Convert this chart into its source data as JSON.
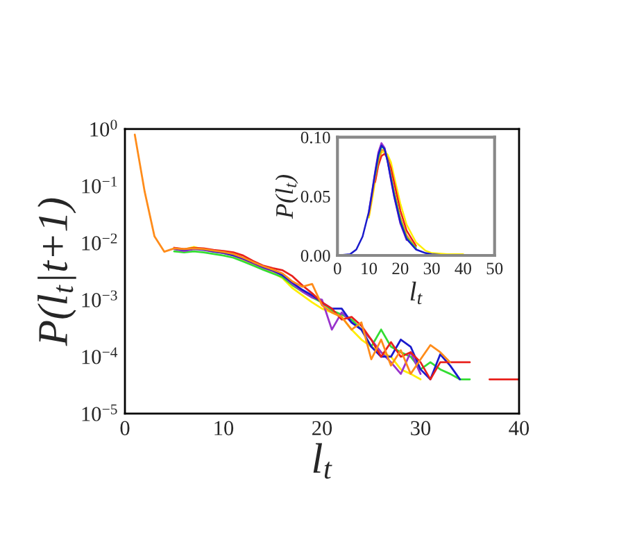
{
  "chart_data": [
    {
      "type": "line",
      "xlabel": "l$_{t}$",
      "ylabel": "P(l$_{t}$|t+1)",
      "log": "y",
      "grid": false,
      "legend": false,
      "xlim": [
        0,
        40
      ],
      "xticks": [
        0,
        10,
        20,
        30,
        40
      ],
      "ylim": [
        1e-05,
        1
      ],
      "yticks": [
        {
          "value": 1e-05,
          "label": "10$^{−5}$"
        },
        {
          "value": 0.0001,
          "label": "10$^{−4}$"
        },
        {
          "value": 0.001,
          "label": "10$^{−3}$"
        },
        {
          "value": 0.01,
          "label": "10$^{−2}$"
        },
        {
          "value": 0.1,
          "label": "10$^{−1}$"
        },
        {
          "value": 1,
          "label": "10$^{0}$"
        }
      ],
      "x": [
        1,
        2,
        3,
        4,
        5,
        6,
        7,
        8,
        9,
        10,
        11,
        12,
        13,
        14,
        15,
        16,
        17,
        18,
        19,
        20,
        21,
        22,
        23,
        24,
        25,
        26,
        27,
        28,
        29,
        30,
        31,
        32,
        33,
        34,
        35,
        36,
        37,
        38,
        39,
        40
      ],
      "series": [
        {
          "color": "#ffee00",
          "values": [
            null,
            null,
            null,
            null,
            0.008,
            0.0077,
            0.0085,
            0.0077,
            0.0072,
            0.0066,
            0.006,
            0.005,
            0.0042,
            0.0035,
            0.003,
            0.0024,
            0.0016,
            0.0012,
            0.0009,
            0.0007,
            0.0006,
            0.0005,
            0.0003,
            0.0002,
            0.00015,
            0.00012,
            0.0001,
            6e-05,
            5e-05,
            4e-05,
            null,
            null,
            null,
            null,
            null,
            null,
            null,
            null,
            null,
            null
          ]
        },
        {
          "color": "#33dd33",
          "values": [
            null,
            null,
            null,
            null,
            0.0071,
            0.0068,
            0.0071,
            0.0068,
            0.0064,
            0.006,
            0.0055,
            0.0047,
            0.004,
            0.0034,
            0.0029,
            0.0025,
            0.0018,
            0.0014,
            0.0011,
            0.0009,
            0.00065,
            0.00055,
            0.00045,
            0.0003,
            0.00015,
            0.0003,
            0.00015,
            0.00012,
            0.0001,
            6e-05,
            8e-05,
            6e-05,
            5e-05,
            4e-05,
            4e-05,
            null,
            null,
            null,
            null,
            null
          ]
        },
        {
          "color": "#9933cc",
          "values": [
            null,
            null,
            null,
            null,
            0.0078,
            0.0072,
            0.0078,
            0.0075,
            0.007,
            0.0066,
            0.006,
            0.0052,
            0.0044,
            0.0037,
            0.0032,
            0.0027,
            0.0019,
            0.0014,
            0.0011,
            0.001,
            0.0003,
            0.0006,
            0.0004,
            0.0003,
            0.0002,
            0.00012,
            8e-05,
            5e-05,
            0.00012,
            5e-05,
            null,
            null,
            null,
            null,
            null,
            null,
            null,
            null,
            null,
            null
          ]
        },
        {
          "color": "#1a1acc",
          "values": [
            null,
            null,
            null,
            null,
            0.008,
            0.0076,
            0.008,
            0.0076,
            0.0071,
            0.0067,
            0.0061,
            0.0053,
            0.0045,
            0.0038,
            0.0033,
            0.0027,
            0.002,
            0.0015,
            0.0012,
            0.0009,
            0.0007,
            0.0007,
            0.0004,
            0.0003,
            0.00015,
            0.0001,
            0.0001,
            0.0002,
            0.00015,
            6e-05,
            4e-05,
            0.00011,
            7e-05,
            4e-05,
            null,
            null,
            null,
            null,
            null,
            null
          ]
        },
        {
          "color": "#e8201c",
          "values": [
            null,
            null,
            null,
            null,
            0.0082,
            0.0078,
            0.0082,
            0.008,
            0.0075,
            0.0072,
            0.0068,
            0.006,
            0.0048,
            0.004,
            0.0036,
            0.0033,
            0.0026,
            0.0018,
            0.0013,
            0.0009,
            0.0007,
            0.00045,
            0.0005,
            0.00035,
            0.0002,
            0.0001,
            0.00018,
            0.0001,
            0.00012,
            8e-05,
            4e-05,
            8e-05,
            8e-05,
            8e-05,
            8e-05,
            null,
            4e-05,
            4e-05,
            4e-05,
            4e-05
          ]
        },
        {
          "color": "#ff8c1a",
          "values": [
            0.8,
            0.08,
            0.013,
            0.007,
            0.008,
            0.0078,
            0.008,
            0.0078,
            0.0073,
            0.0069,
            0.0064,
            0.0055,
            0.0046,
            0.0039,
            0.0034,
            0.0029,
            0.0021,
            0.0017,
            0.0019,
            0.0008,
            0.0006,
            0.0005,
            0.0003,
            0.0004,
            9e-05,
            0.0002,
            7e-05,
            0.00013,
            5e-05,
            9e-05,
            0.00016,
            0.00012,
            8e-05,
            null,
            null,
            null,
            null,
            null,
            null,
            null
          ]
        }
      ]
    },
    {
      "type": "line",
      "xlabel": "l$_{t}$",
      "ylabel": "P(l$_{t}$)",
      "grid": false,
      "legend": false,
      "xlim": [
        0,
        50
      ],
      "xticks": [
        0,
        10,
        20,
        30,
        40,
        50
      ],
      "ylim": [
        0,
        0.1
      ],
      "yticks": [
        {
          "value": 0,
          "label": "0.00"
        },
        {
          "value": 0.05,
          "label": "0.05"
        },
        {
          "value": 0.1,
          "label": "0.10"
        }
      ],
      "series": [
        {
          "color": "#ffee00",
          "x": [
            10,
            11,
            12,
            13,
            14,
            15,
            16,
            17,
            18,
            20,
            22,
            25,
            28,
            30,
            35,
            40
          ],
          "values": [
            0.032,
            0.047,
            0.063,
            0.078,
            0.087,
            0.088,
            0.085,
            0.079,
            0.067,
            0.044,
            0.026,
            0.011,
            0.004,
            0.002,
            0.001,
            0.001
          ]
        },
        {
          "color": "#e8201c",
          "x": [
            12,
            13,
            14,
            15,
            16,
            17,
            18,
            20,
            22,
            25
          ],
          "values": [
            0.062,
            0.076,
            0.084,
            0.086,
            0.082,
            0.074,
            0.062,
            0.038,
            0.021,
            0.008
          ]
        },
        {
          "color": "#ff8c1a",
          "x": [
            10,
            11,
            12,
            13,
            14,
            15,
            16,
            17,
            18,
            20,
            22,
            25
          ],
          "values": [
            0.034,
            0.05,
            0.066,
            0.08,
            0.089,
            0.089,
            0.081,
            0.068,
            0.055,
            0.032,
            0.017,
            0.006
          ]
        },
        {
          "color": "#33dd33",
          "x": [
            12,
            13,
            14,
            15,
            16,
            17,
            18,
            20,
            22,
            25
          ],
          "values": [
            0.068,
            0.083,
            0.092,
            0.09,
            0.08,
            0.066,
            0.053,
            0.03,
            0.015,
            0.006
          ]
        },
        {
          "color": "#9933cc",
          "x": [
            10,
            11,
            12,
            13,
            14,
            15,
            16,
            17,
            18,
            20,
            22
          ],
          "values": [
            0.037,
            0.054,
            0.071,
            0.087,
            0.095,
            0.091,
            0.079,
            0.064,
            0.05,
            0.027,
            0.013
          ]
        },
        {
          "color": "#1a1acc",
          "x": [
            0,
            4,
            6,
            8,
            10,
            11,
            12,
            13,
            14,
            15,
            16,
            17,
            18,
            20,
            22,
            25,
            28,
            30,
            35
          ],
          "values": [
            0,
            0.001,
            0.005,
            0.016,
            0.037,
            0.053,
            0.07,
            0.085,
            0.093,
            0.09,
            0.079,
            0.065,
            0.051,
            0.028,
            0.014,
            0.005,
            0.002,
            0.001,
            0
          ]
        }
      ]
    }
  ]
}
